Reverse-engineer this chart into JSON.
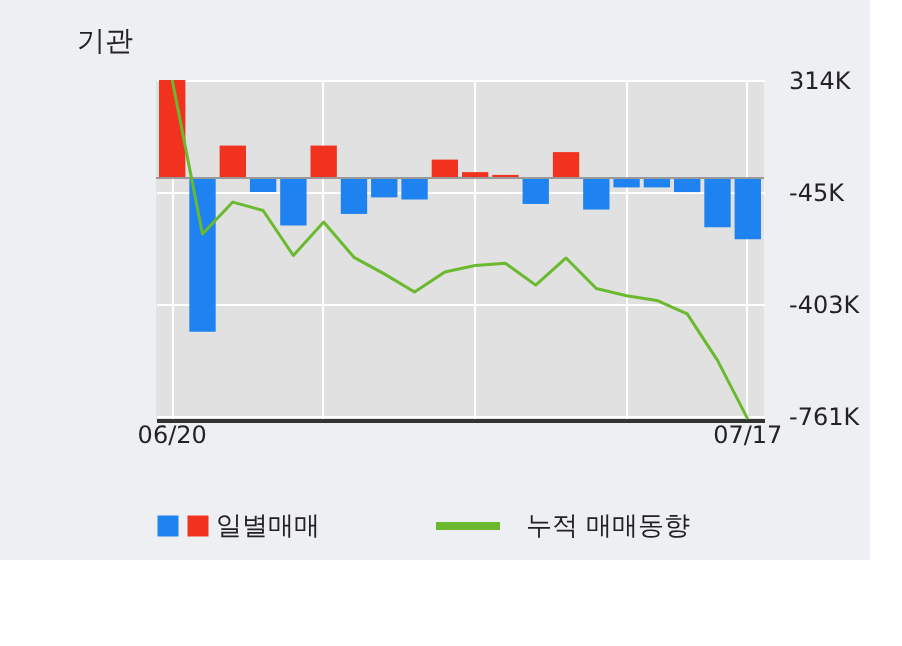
{
  "chart_data": {
    "type": "bar",
    "title": "기관",
    "categories": [
      "06/20",
      null,
      null,
      null,
      null,
      null,
      null,
      null,
      null,
      null,
      null,
      null,
      null,
      null,
      null,
      null,
      null,
      null,
      null,
      "07/17"
    ],
    "series": [
      {
        "name": "일별매매",
        "colors": [
          "#f0321e",
          "#1e82f0",
          "#f0321e",
          "#1e82f0",
          "#1e82f0",
          "#f0321e",
          "#1e82f0",
          "#1e82f0",
          "#1e82f0",
          "#f0321e",
          "#f0321e",
          "#f0321e",
          "#1e82f0",
          "#f0321e",
          "#1e82f0",
          "#1e82f0",
          "#1e82f0",
          "#1e82f0",
          "#1e82f0",
          "#1e82f0"
        ],
        "values": [
          314,
          -492,
          104,
          -45,
          -152,
          104,
          -115,
          -62,
          -69,
          59,
          19,
          10,
          -83,
          83,
          -101,
          -30,
          -30,
          -45,
          -158,
          -196
        ]
      },
      {
        "name": "누적 매매동향",
        "type": "line",
        "color": "#6ab92e",
        "values": [
          314,
          -179,
          -77,
          -104,
          -248,
          -141,
          -254,
          -307,
          -365,
          -301,
          -280,
          -273,
          -343,
          -256,
          -354,
          -377,
          -392,
          -435,
          -584,
          -772
        ]
      }
    ],
    "ylim": [
      -775,
      314
    ],
    "yticks": [
      {
        "value": 314,
        "label": "314K"
      },
      {
        "value": -45,
        "label": "-45K"
      },
      {
        "value": -403,
        "label": "-403K"
      },
      {
        "value": -761,
        "label": "-761K"
      }
    ],
    "ref_lines": [
      {
        "axis": "y",
        "value": 0,
        "color": "#999999"
      }
    ],
    "grid": true,
    "legend": "bottom"
  }
}
